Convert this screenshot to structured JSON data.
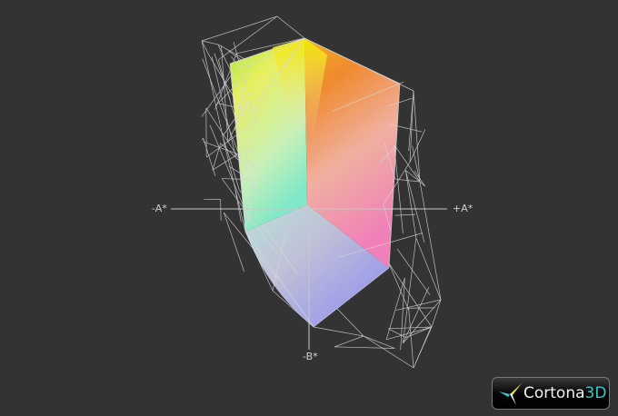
{
  "axes": {
    "neg_a": "-A*",
    "pos_a": "+A*",
    "neg_b": "-B*"
  },
  "logo": {
    "name": "Cortona",
    "suffix": "3D"
  },
  "colors": {
    "background": "#333333",
    "wireframe": "#d8d8d8",
    "axis": "#c8c8c8",
    "logo_accent": "#39c6c6"
  }
}
